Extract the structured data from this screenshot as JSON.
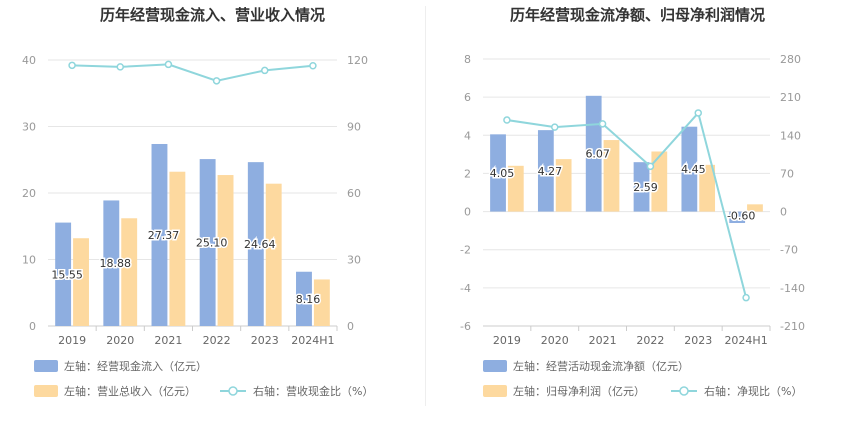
{
  "chart_data": [
    {
      "type": "bar",
      "title": "历年经营现金流入、营业收入情况",
      "categories": [
        "2019",
        "2020",
        "2021",
        "2022",
        "2023",
        "2024H1"
      ],
      "left_axis": {
        "min": 0,
        "max": 40,
        "ticks": [
          "0",
          "10",
          "20",
          "30",
          "40"
        ]
      },
      "right_axis": {
        "min": 0,
        "max": 120,
        "ticks": [
          "0",
          "30",
          "60",
          "90",
          "120"
        ]
      },
      "series": [
        {
          "name": "左轴：经营现金流入（亿元）",
          "type": "bar",
          "axis": "left",
          "color": "#8eaee0",
          "values": [
            15.55,
            18.88,
            27.37,
            25.1,
            24.64,
            8.16
          ],
          "labels": [
            "15.55",
            "18.88",
            "27.37",
            "25.10",
            "24.64",
            "8.16"
          ]
        },
        {
          "name": "左轴：营业总收入（亿元）",
          "type": "bar",
          "axis": "left",
          "color": "#fdd99f",
          "values": [
            13.2,
            16.2,
            23.2,
            22.7,
            21.4,
            7.0
          ]
        },
        {
          "name": "右轴：营收现金比（%）",
          "type": "line",
          "axis": "right",
          "color": "#8fd6dc",
          "values": [
            117.6,
            116.9,
            118.0,
            110.6,
            115.3,
            117.4
          ]
        }
      ],
      "grid": true,
      "legend_position": "bottom-left"
    },
    {
      "type": "bar",
      "title": "历年经营现金流净额、归母净利润情况",
      "categories": [
        "2019",
        "2020",
        "2021",
        "2022",
        "2023",
        "2024H1"
      ],
      "left_axis": {
        "min": -6,
        "max": 8,
        "ticks": [
          "-6",
          "-4",
          "-2",
          "0",
          "2",
          "4",
          "6",
          "8"
        ]
      },
      "right_axis": {
        "min": -210,
        "max": 280,
        "ticks": [
          "-210",
          "-140",
          "-70",
          "0",
          "70",
          "140",
          "210",
          "280"
        ]
      },
      "series": [
        {
          "name": "左轴：经营活动现金流净额（亿元）",
          "type": "bar",
          "axis": "left",
          "color": "#8eaee0",
          "values": [
            4.05,
            4.27,
            6.07,
            2.59,
            4.45,
            -0.6
          ],
          "labels": [
            "4.05",
            "4.27",
            "6.07",
            "2.59",
            "4.45",
            "-0.60"
          ]
        },
        {
          "name": "左轴：归母净利润（亿元）",
          "type": "bar",
          "axis": "left",
          "color": "#fdd99f",
          "values": [
            2.4,
            2.75,
            3.75,
            3.15,
            2.45,
            0.38
          ]
        },
        {
          "name": "右轴：净现比（%）",
          "type": "line",
          "axis": "right",
          "color": "#8fd6dc",
          "values": [
            168,
            155,
            161,
            83,
            181,
            -158
          ]
        }
      ],
      "grid": true,
      "legend_position": "bottom-left"
    }
  ]
}
